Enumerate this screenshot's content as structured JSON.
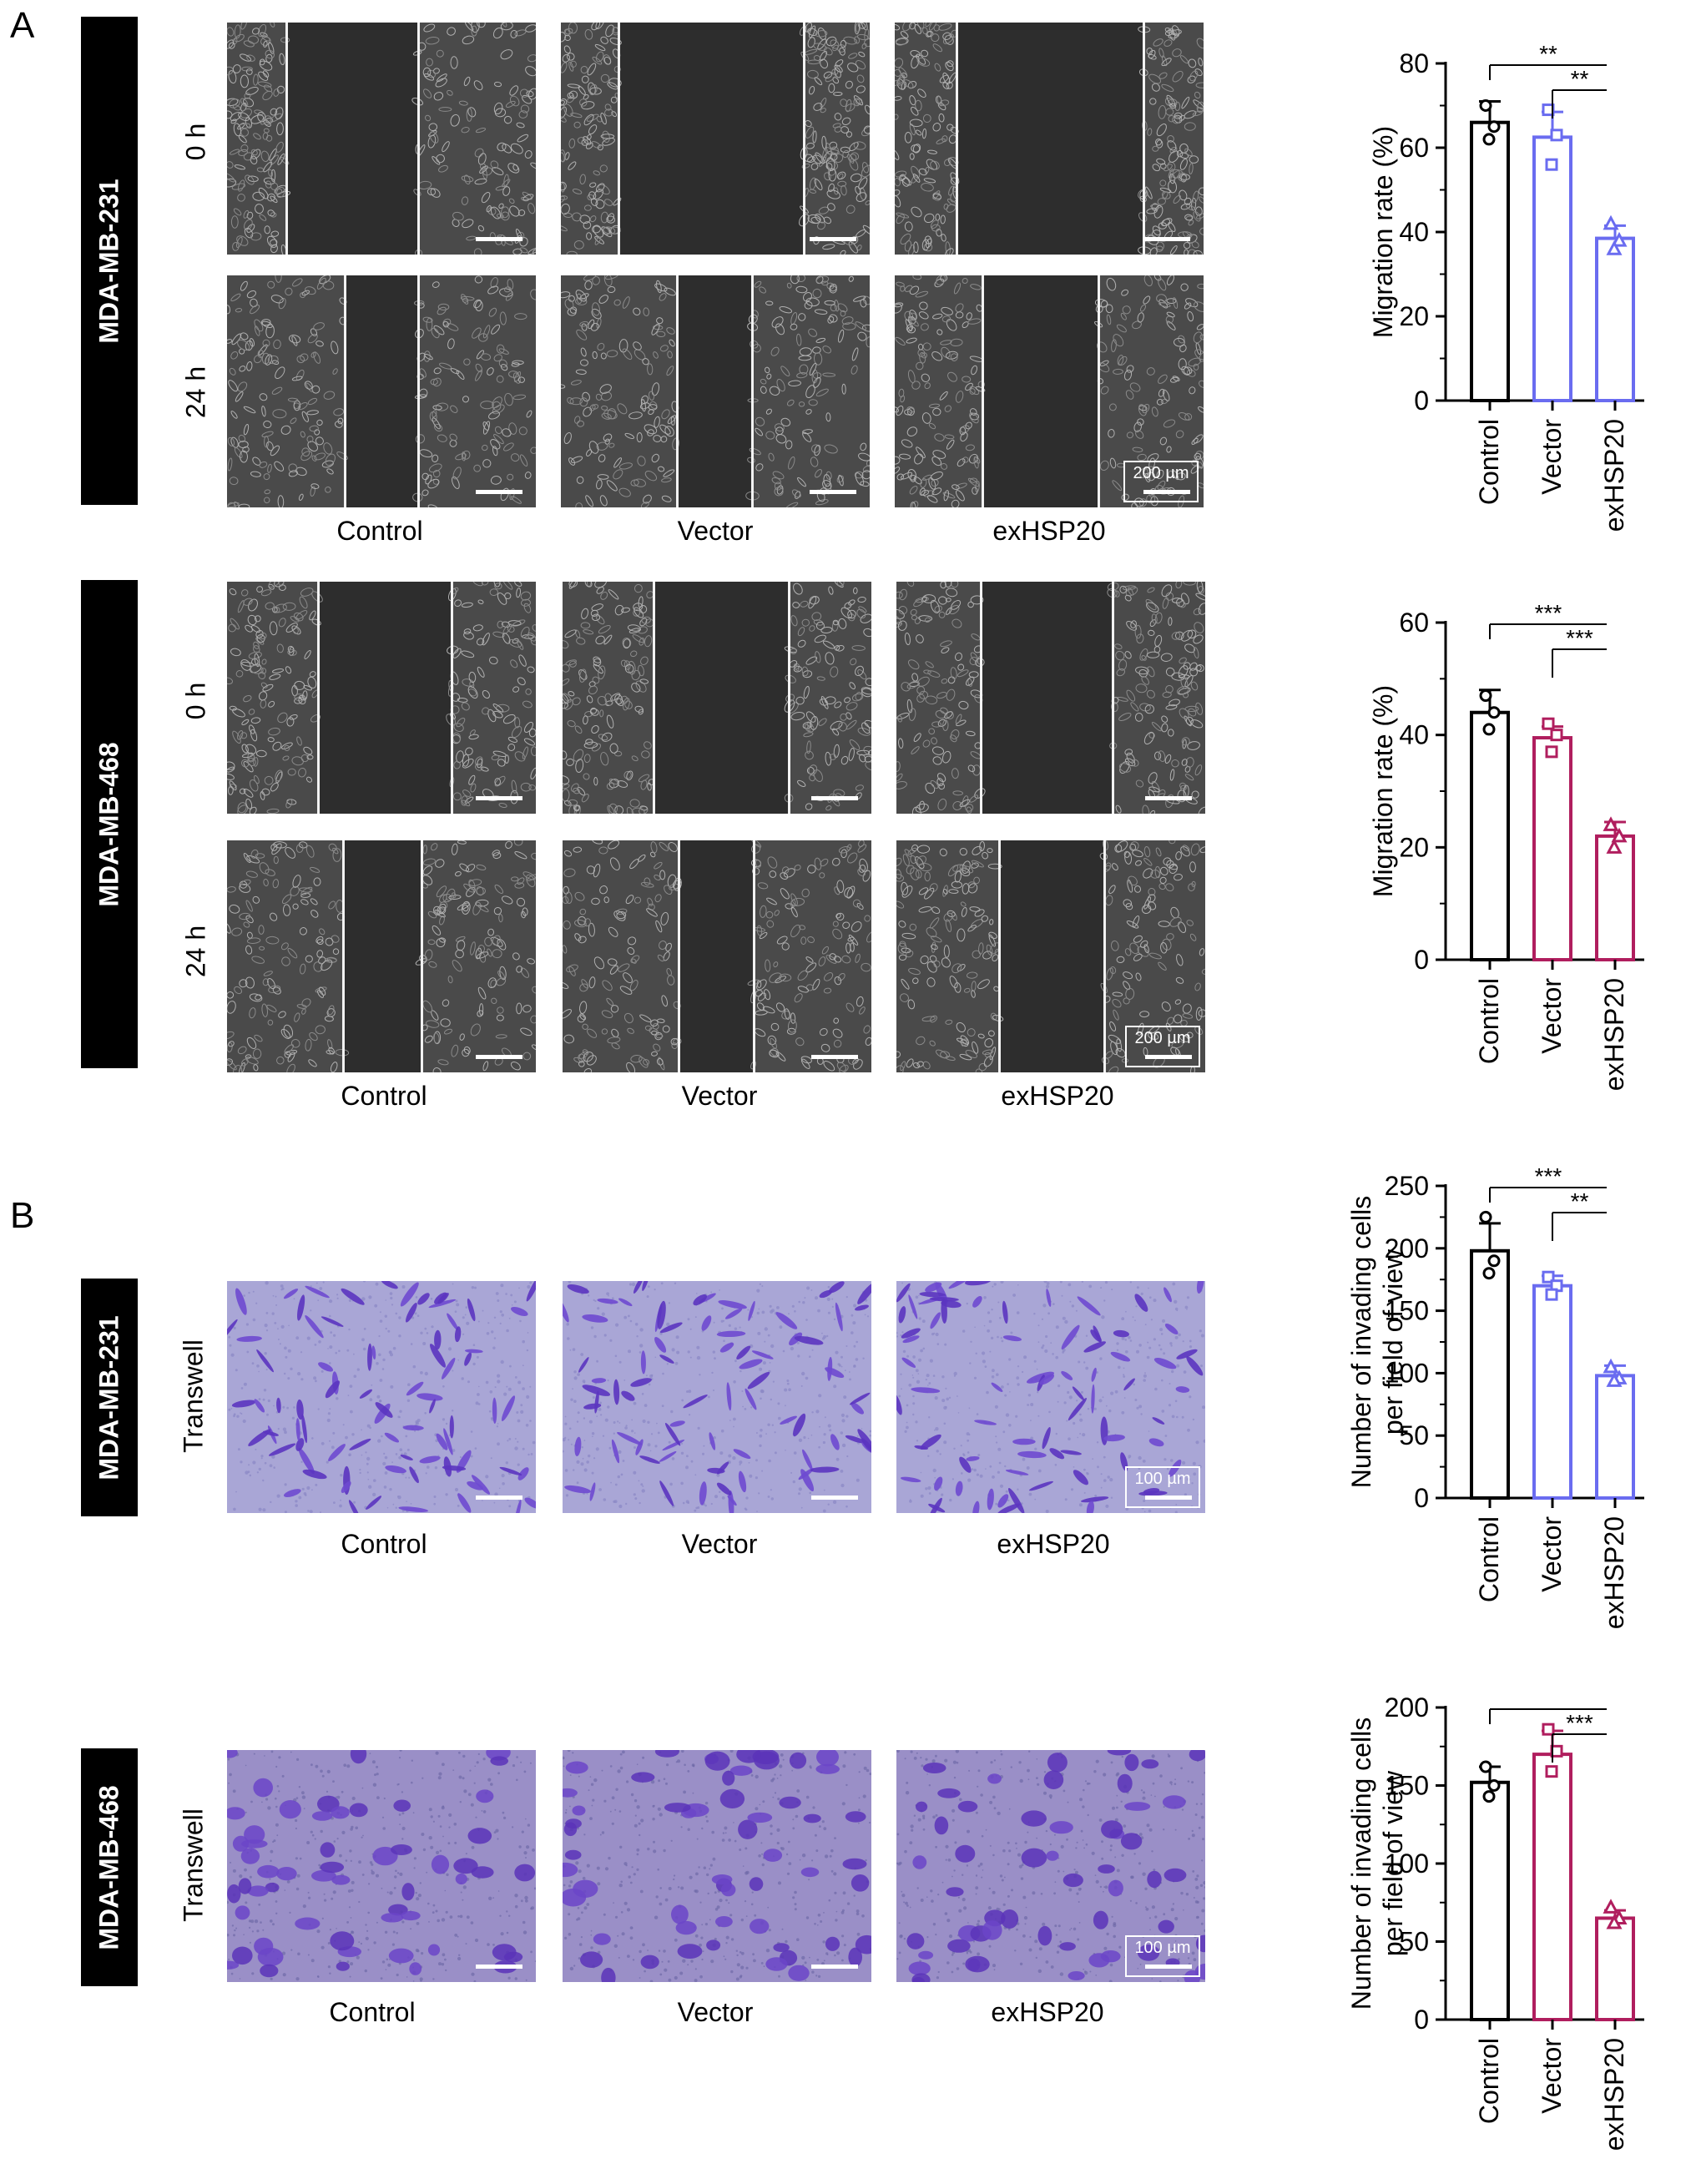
{
  "panel_labels": [
    "A",
    "B"
  ],
  "cell_lines": {
    "mda231": "MDA-MB-231",
    "mda468": "MDA-MB-468"
  },
  "time_labels": {
    "t0": "0 h",
    "t24": "24 h"
  },
  "assay_label": "Transwell",
  "groups": [
    "Control",
    "Vector",
    "exHSP20"
  ],
  "scale_bars": {
    "wound": "200 µm",
    "transwell": "100 µm"
  },
  "colors": {
    "control": "#000000",
    "mda231": "#6a6cf0",
    "mda468": "#b01e5e"
  },
  "chart_data": [
    {
      "type": "bar",
      "categories": [
        "Control",
        "Vector",
        "exHSP20"
      ],
      "series": [
        {
          "values": [
            66,
            62.5,
            38.5
          ],
          "errors": [
            5,
            6,
            3
          ]
        }
      ],
      "points": [
        [
          70,
          65,
          62
        ],
        [
          69,
          63,
          56
        ],
        [
          42,
          38,
          36
        ]
      ],
      "markers": [
        "circle",
        "square",
        "triangle"
      ],
      "ylabel": "Migration rate (%)",
      "ylim": [
        0,
        80
      ],
      "yticks": [
        0,
        20,
        40,
        60,
        80
      ],
      "significance": [
        {
          "from": 0,
          "to": 2,
          "label": "**"
        },
        {
          "from": 1,
          "to": 2,
          "label": "**"
        }
      ]
    },
    {
      "type": "bar",
      "categories": [
        "Control",
        "Vector",
        "exHSP20"
      ],
      "series": [
        {
          "values": [
            44,
            39.5,
            22
          ],
          "errors": [
            4,
            2,
            2.5
          ]
        }
      ],
      "points": [
        [
          47,
          44,
          41
        ],
        [
          42,
          40,
          37
        ],
        [
          24,
          22,
          20
        ]
      ],
      "markers": [
        "circle",
        "square",
        "triangle"
      ],
      "ylabel": "Migration rate (%)",
      "ylim": [
        0,
        60
      ],
      "yticks": [
        0,
        20,
        40,
        60
      ],
      "significance": [
        {
          "from": 0,
          "to": 2,
          "label": "***"
        },
        {
          "from": 1,
          "to": 2,
          "label": "***"
        }
      ]
    },
    {
      "type": "bar",
      "categories": [
        "Control",
        "Vector",
        "exHSP20"
      ],
      "series": [
        {
          "values": [
            198,
            170,
            98
          ],
          "errors": [
            22,
            8,
            8
          ]
        }
      ],
      "points": [
        [
          225,
          190,
          180
        ],
        [
          177,
          170,
          163
        ],
        [
          105,
          96,
          94
        ]
      ],
      "markers": [
        "circle",
        "square",
        "triangle"
      ],
      "ylabel_lines": [
        "Number of invading cells",
        "per field of view"
      ],
      "ylim": [
        0,
        250
      ],
      "yticks": [
        0,
        50,
        100,
        150,
        200,
        250
      ],
      "significance": [
        {
          "from": 0,
          "to": 2,
          "label": "***"
        },
        {
          "from": 1,
          "to": 2,
          "label": "**"
        }
      ]
    },
    {
      "type": "bar",
      "categories": [
        "Control",
        "Vector",
        "exHSP20"
      ],
      "series": [
        {
          "values": [
            152,
            170,
            65
          ],
          "errors": [
            10,
            15,
            5
          ]
        }
      ],
      "points": [
        [
          162,
          150,
          143
        ],
        [
          186,
          172,
          159
        ],
        [
          72,
          65,
          62
        ]
      ],
      "markers": [
        "circle",
        "square",
        "triangle"
      ],
      "ylabel_lines": [
        "Number of invading cells",
        "per field of view"
      ],
      "ylim": [
        0,
        200
      ],
      "yticks": [
        0,
        50,
        100,
        150,
        200
      ],
      "significance": [
        {
          "from": 0,
          "to": 2,
          "label": ""
        },
        {
          "from": 1,
          "to": 2,
          "label": "***"
        }
      ]
    }
  ]
}
